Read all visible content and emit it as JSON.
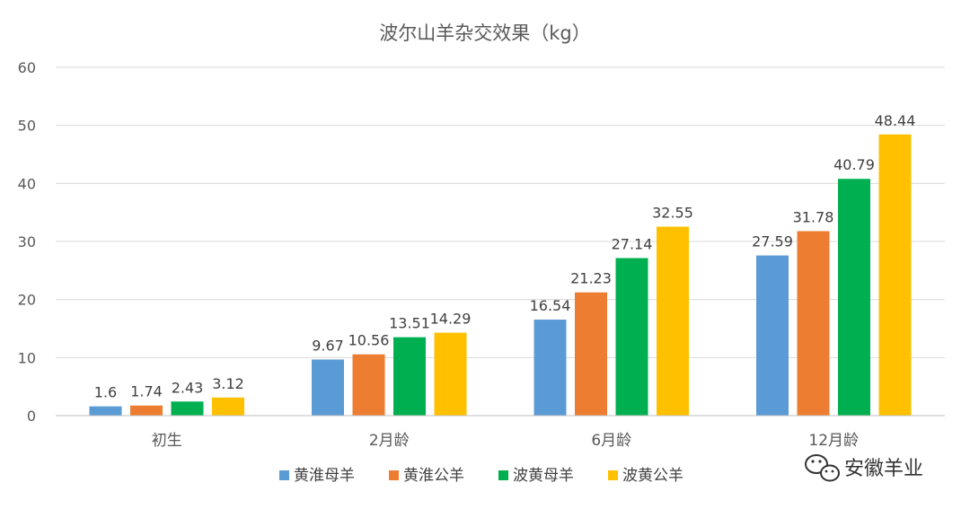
{
  "chart_data": {
    "type": "bar",
    "title": "波尔山羊杂交效果（kg）",
    "categories": [
      "初生",
      "2月龄",
      "6月龄",
      "12月龄"
    ],
    "series": [
      {
        "name": "黄淮母羊",
        "color": "#5B9BD5",
        "values": [
          1.6,
          9.67,
          16.54,
          27.59
        ]
      },
      {
        "name": "黄淮公羊",
        "color": "#ED7D31",
        "values": [
          1.74,
          10.56,
          21.23,
          31.78
        ]
      },
      {
        "name": "波黄母羊",
        "color": "#00B050",
        "values": [
          2.43,
          13.51,
          27.14,
          40.79
        ]
      },
      {
        "name": "波黄公羊",
        "color": "#FFC000",
        "values": [
          3.12,
          14.29,
          32.55,
          48.44
        ]
      }
    ],
    "data_labels": [
      [
        "1.6",
        "9.67",
        "16.54",
        "27.59"
      ],
      [
        "1.74",
        "10.56",
        "21.23",
        "31.78"
      ],
      [
        "2.43",
        "13.51",
        "27.14",
        "40.79"
      ],
      [
        "3.12",
        "14.29",
        "32.55",
        "48.44"
      ]
    ],
    "ylim": [
      0,
      60
    ],
    "yticks": [
      "0",
      "10",
      "20",
      "30",
      "40",
      "50",
      "60"
    ],
    "xlabel": "",
    "ylabel": "",
    "grid": true,
    "legend_position": "bottom"
  },
  "watermark": {
    "text": "安徽羊业",
    "icon": "wechat-icon"
  }
}
